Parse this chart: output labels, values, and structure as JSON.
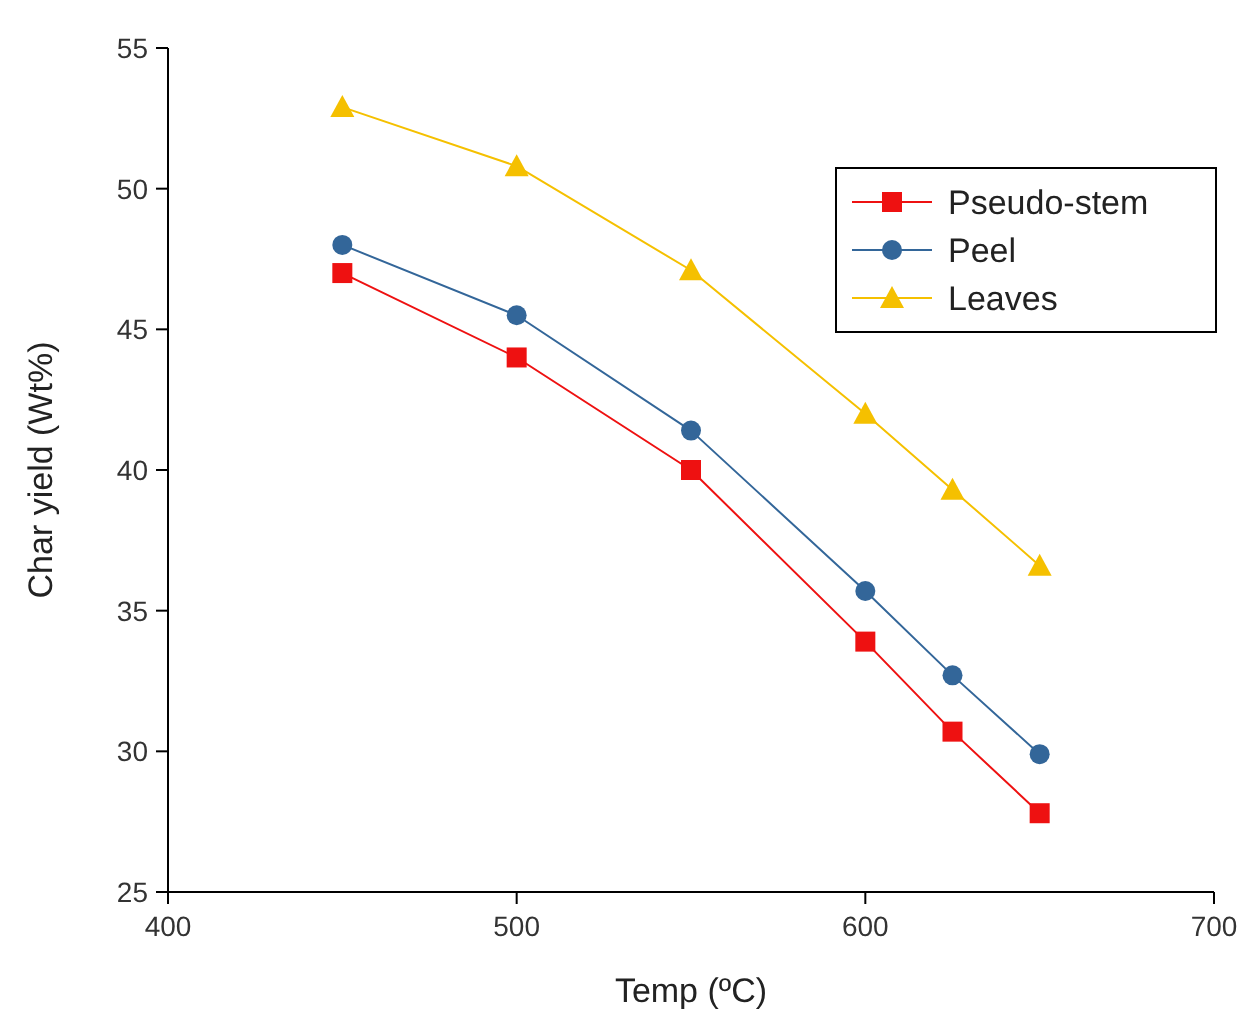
{
  "chart_data": {
    "type": "line",
    "xlabel": "Temp (ºC)",
    "ylabel": "Char yield (Wt%)",
    "x": [
      450,
      500,
      550,
      600,
      625,
      650
    ],
    "xlim": [
      400,
      700
    ],
    "xticks": [
      400,
      500,
      600,
      700
    ],
    "ylim": [
      25,
      55
    ],
    "yticks": [
      25,
      30,
      35,
      40,
      45,
      50,
      55
    ],
    "grid": false,
    "legend": "top right",
    "line_style": "solid",
    "series": [
      {
        "name": "Pseudo-stem",
        "color": "#ee1111",
        "marker": "square",
        "values": [
          47.0,
          44.0,
          40.0,
          33.9,
          30.7,
          27.8
        ]
      },
      {
        "name": "Peel",
        "color": "#336699",
        "marker": "circle",
        "values": [
          48.0,
          45.5,
          41.4,
          35.7,
          32.7,
          29.9
        ]
      },
      {
        "name": "Leaves",
        "color": "#f5c000",
        "marker": "triangle",
        "values": [
          52.9,
          50.8,
          47.1,
          42.0,
          39.3,
          36.6
        ]
      }
    ]
  }
}
